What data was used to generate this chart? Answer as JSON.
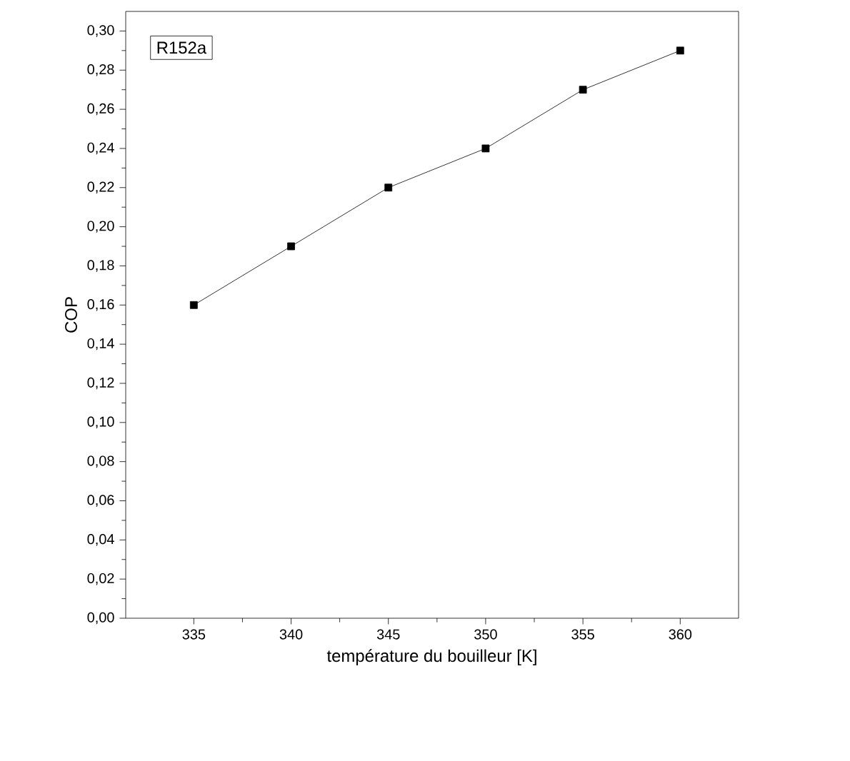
{
  "chart_data": {
    "type": "line",
    "xlabel": "température du bouilleur [K]",
    "ylabel": "COP",
    "annotations": [
      "R152a"
    ],
    "x": [
      335,
      340,
      345,
      350,
      355,
      360
    ],
    "series": [
      {
        "color": "#000000",
        "values": [
          0.16,
          0.19,
          0.22,
          0.24,
          0.27,
          0.29
        ]
      }
    ],
    "marker": "square",
    "line_style": "solid",
    "xlim": [
      331.5,
      363
    ],
    "ylim": [
      0,
      0.31
    ],
    "xticks": [
      335,
      340,
      345,
      350,
      355,
      360
    ],
    "yticks": [
      {
        "value": 0,
        "label": "0,00"
      },
      {
        "value": 0.02,
        "label": "0,02"
      },
      {
        "value": 0.04,
        "label": "0,04"
      },
      {
        "value": 0.06,
        "label": "0,06"
      },
      {
        "value": 0.08,
        "label": "0,08"
      },
      {
        "value": 0.1,
        "label": "0,10"
      },
      {
        "value": 0.12,
        "label": "0,12"
      },
      {
        "value": 0.14,
        "label": "0,14"
      },
      {
        "value": 0.16,
        "label": "0,16"
      },
      {
        "value": 0.18,
        "label": "0,18"
      },
      {
        "value": 0.2,
        "label": "0,20"
      },
      {
        "value": 0.22,
        "label": "0,22"
      },
      {
        "value": 0.24,
        "label": "0,24"
      },
      {
        "value": 0.26,
        "label": "0,26"
      },
      {
        "value": 0.28,
        "label": "0,28"
      },
      {
        "value": 0.3,
        "label": "0,30"
      }
    ]
  }
}
